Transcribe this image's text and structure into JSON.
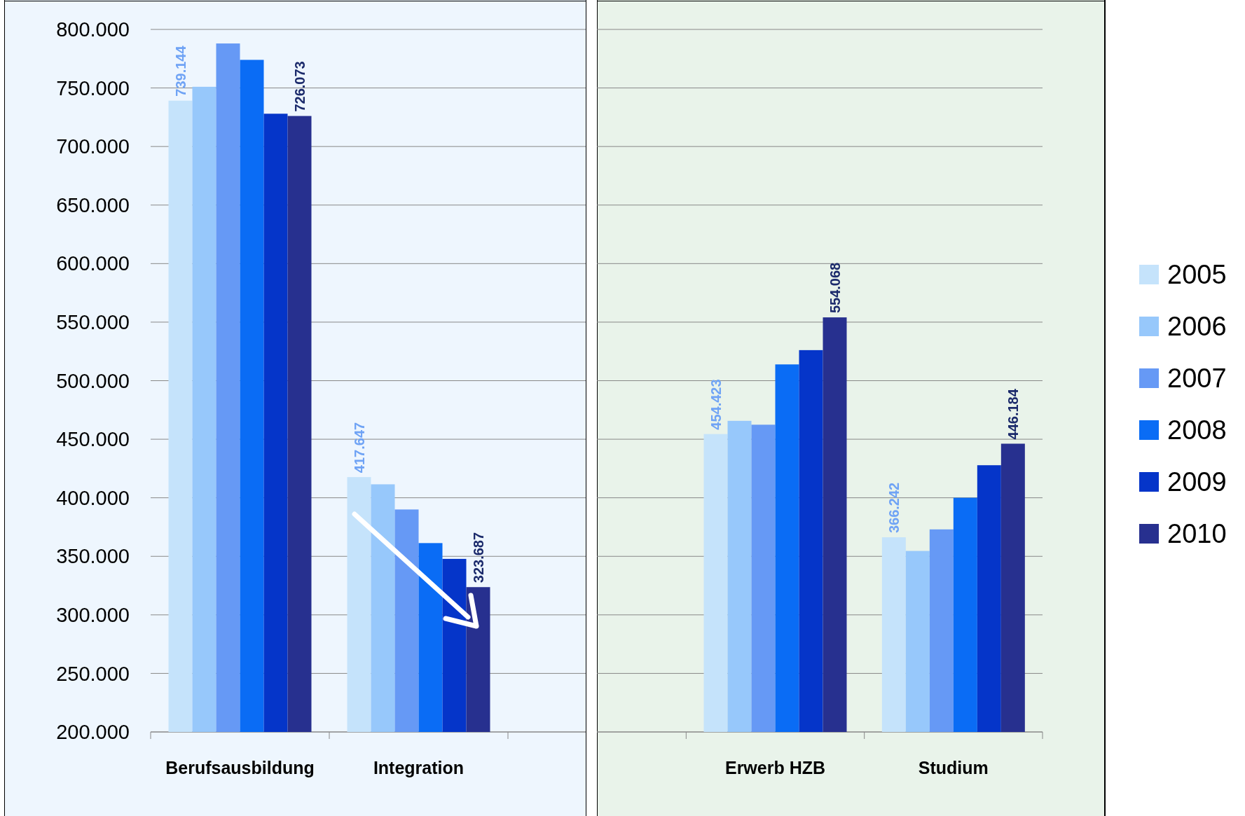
{
  "chart_data": [
    {
      "type": "bar",
      "categories": [
        "Berufsausbildung",
        "Integration"
      ],
      "series": [
        {
          "color": "#c5e3fb",
          "values": [
            739144,
            417647
          ],
          "value_labels": [
            "739.144",
            "417.647"
          ]
        },
        {
          "color": "#97c8fb",
          "values": [
            751000,
            411500
          ]
        },
        {
          "color": "#6699f5",
          "values": [
            788000,
            390000
          ]
        },
        {
          "color": "#0a6cf5",
          "values": [
            774000,
            361300
          ]
        },
        {
          "color": "#0535c9",
          "values": [
            728000,
            347800
          ]
        },
        {
          "color": "#27308f",
          "values": [
            726073,
            323687
          ],
          "value_labels": [
            "726.073",
            "323.687"
          ]
        }
      ],
      "ylim": [
        200000,
        800000
      ],
      "yticks": [
        {
          "value": 200000,
          "label": "200.000"
        },
        {
          "value": 250000,
          "label": "250.000"
        },
        {
          "value": 300000,
          "label": "300.000"
        },
        {
          "value": 350000,
          "label": "350.000"
        },
        {
          "value": 400000,
          "label": "400.000"
        },
        {
          "value": 450000,
          "label": "450.000"
        },
        {
          "value": 500000,
          "label": "500.000"
        },
        {
          "value": 550000,
          "label": "550.000"
        },
        {
          "value": 600000,
          "label": "600.000"
        },
        {
          "value": 650000,
          "label": "650.000"
        },
        {
          "value": 700000,
          "label": "700.000"
        },
        {
          "value": 750000,
          "label": "750.000"
        },
        {
          "value": 800000,
          "label": "800.000"
        }
      ],
      "grid": "y"
    },
    {
      "type": "bar",
      "categories": [
        null,
        "Erwerb HZB",
        "Studium"
      ],
      "series": [
        {
          "name": "2005",
          "color": "#c5e3fb",
          "values": [
            null,
            454423,
            366242
          ],
          "value_labels": [
            null,
            "454.423",
            "366.242"
          ]
        },
        {
          "name": "2006",
          "color": "#97c8fb",
          "values": [
            null,
            465700,
            354600
          ]
        },
        {
          "name": "2007",
          "color": "#6699f5",
          "values": [
            null,
            462400,
            373000
          ]
        },
        {
          "name": "2008",
          "color": "#0a6cf5",
          "values": [
            null,
            513900,
            400000
          ]
        },
        {
          "name": "2009",
          "color": "#0535c9",
          "values": [
            null,
            526100,
            427800
          ]
        },
        {
          "name": "2010",
          "color": "#27308f",
          "values": [
            null,
            554068,
            446184
          ],
          "value_labels": [
            null,
            "554.068",
            "446.184"
          ]
        }
      ],
      "ylim": [
        200000,
        800000
      ],
      "yticks": [
        200000,
        250000,
        300000,
        350000,
        400000,
        450000,
        500000,
        550000,
        600000,
        650000,
        700000,
        750000,
        800000
      ],
      "grid": "y",
      "legend": "right",
      "tick_labels": "x"
    }
  ]
}
